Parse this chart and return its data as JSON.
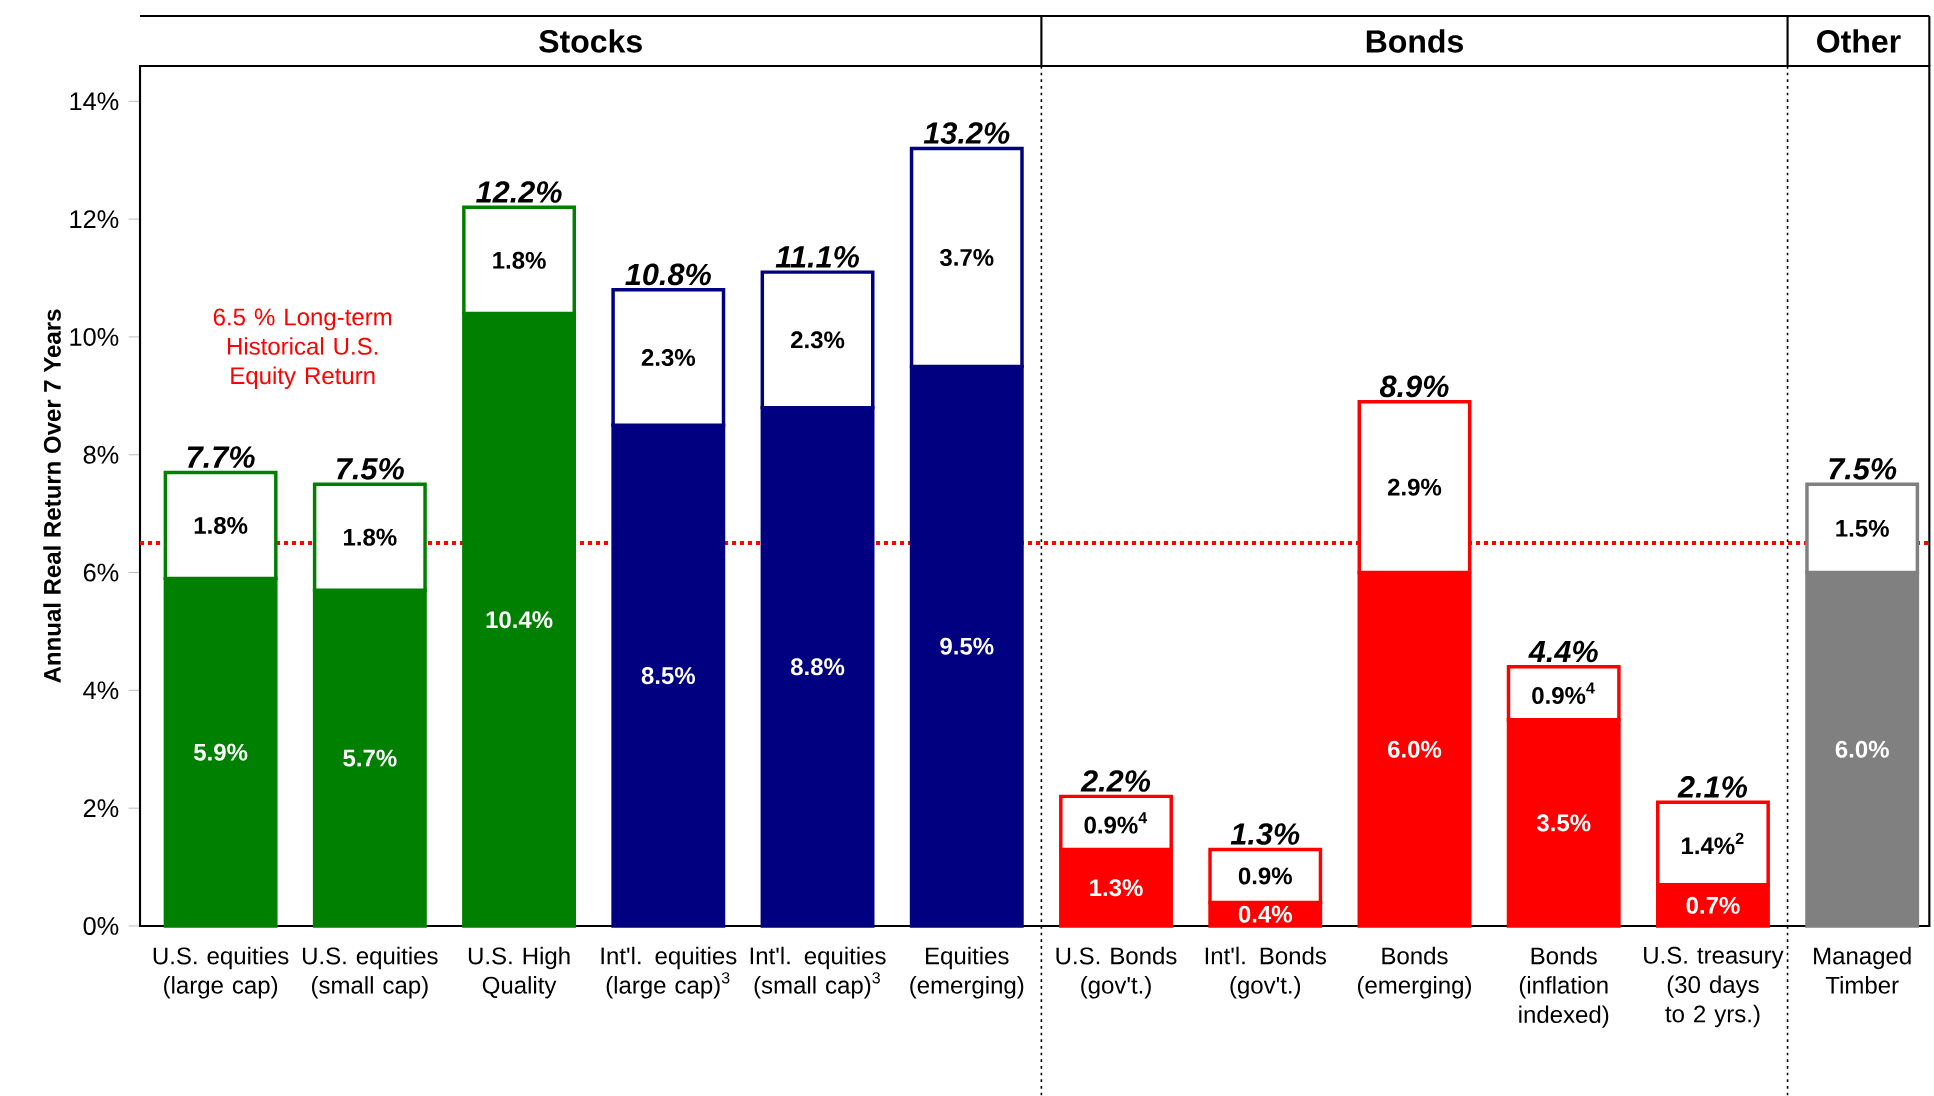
{
  "chart_data": {
    "type": "bar",
    "stacked": true,
    "categories": [
      "U.S. equities (large cap)",
      "U.S. equities (small cap)",
      "U.S. High Quality",
      "Int'l. equities (large cap)$^{3}$",
      "Int'l. equities (small cap)$^{3}$",
      "Equities (emerging)",
      "U.S. Bonds (gov't.)",
      "Int'l. Bonds (gov't.)",
      "Bonds (emerging)",
      "Bonds (inflation indexed)",
      "U.S. treasury (30 days to 2 yrs.)",
      "Managed Timber"
    ],
    "series": [
      {
        "colors": [
          "#008000",
          "#008000",
          "#008000",
          "#000080",
          "#000080",
          "#000080",
          "#ff0000",
          "#ff0000",
          "#ff0000",
          "#ff0000",
          "#ff0000",
          "#808080"
        ],
        "values": [
          5.9,
          5.7,
          10.4,
          8.5,
          8.8,
          9.5,
          1.3,
          0.4,
          6.0,
          3.5,
          0.7,
          6.0
        ],
        "value_labels": [
          "5.9%",
          "5.7%",
          "10.4%",
          "8.5%",
          "8.8%",
          "9.5%",
          "1.3%",
          "0.4%",
          "6.0%",
          "3.5%",
          "0.7%",
          "6.0%"
        ]
      },
      {
        "color": "#ffffff",
        "values": [
          1.8,
          1.8,
          1.8,
          2.3,
          2.3,
          3.7,
          0.9,
          0.9,
          2.9,
          0.9,
          1.4,
          1.5
        ],
        "value_labels": [
          "1.8%",
          "1.8%",
          "1.8%",
          "2.3%",
          "2.3%",
          "3.7%",
          "0.9%$^{4}$",
          "0.9%",
          "2.9%",
          "0.9%$^{4}$",
          "1.4%$^{2}$",
          "1.5%"
        ]
      }
    ],
    "totals": [
      "7.7%",
      "7.5%",
      "12.2%",
      "10.8%",
      "11.1%",
      "13.2%",
      "2.2%",
      "1.3%",
      "8.9%",
      "4.4%",
      "2.1%",
      "7.5%"
    ],
    "ylabel": "Annual Real Return Over 7 Years",
    "ylim": [
      0,
      14.6
    ],
    "yticks": [
      {
        "value": 0,
        "label": "0%"
      },
      {
        "value": 2,
        "label": "2%"
      },
      {
        "value": 4,
        "label": "4%"
      },
      {
        "value": 6,
        "label": "6%"
      },
      {
        "value": 8,
        "label": "8%"
      },
      {
        "value": 10,
        "label": "10%"
      },
      {
        "value": 12,
        "label": "12%"
      },
      {
        "value": 14,
        "label": "14%"
      }
    ],
    "ref_lines": [
      {
        "axis": "y",
        "value": 6.5,
        "label": "6.5 % Long-term Historical U.S. Equity Return",
        "color": "#ff0000",
        "line_style": "dotted"
      }
    ],
    "annotations": [
      "Stocks",
      "Bonds",
      "Other"
    ]
  }
}
